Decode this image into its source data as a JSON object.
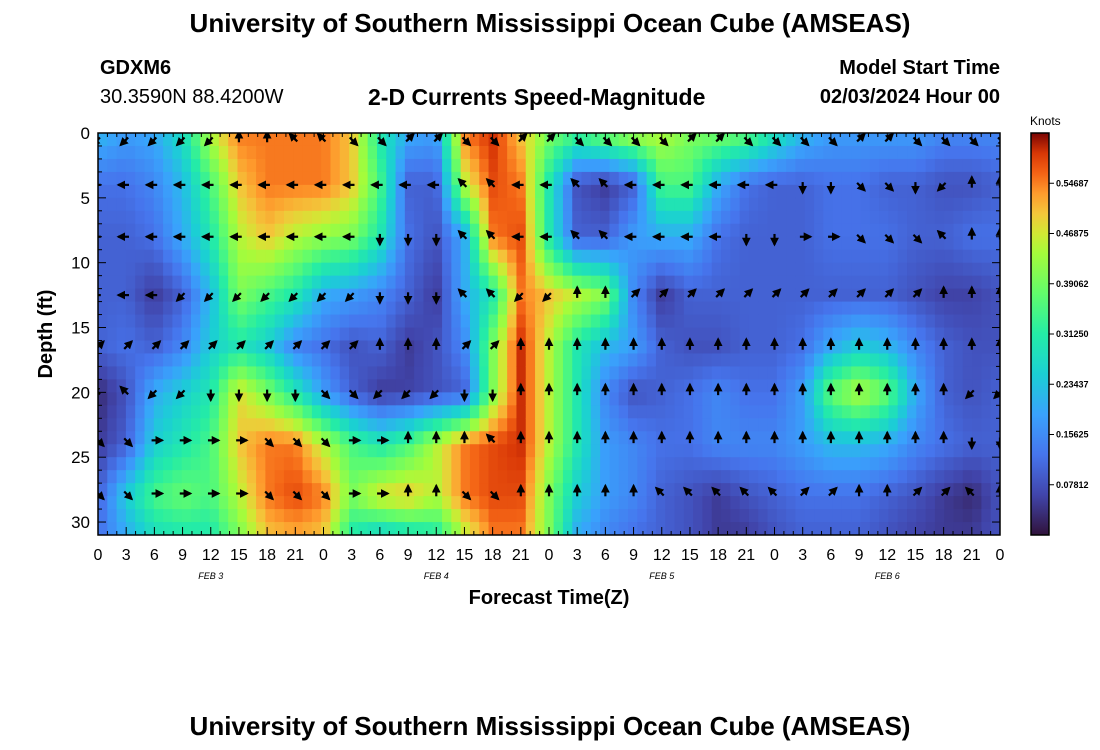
{
  "title": "University of Southern Mississippi Ocean Cube (AMSEAS)",
  "footer_title": "University of Southern Mississippi Ocean Cube (AMSEAS)",
  "header": {
    "station": "GDXM6",
    "coords": "30.3590N  88.4200W",
    "subtitle": "2-D Currents Speed-Magnitude",
    "model_label": "Model Start Time",
    "model_time": "02/03/2024 Hour 00"
  },
  "chart_data": {
    "type": "heatmap",
    "ylabel": "Depth (ft)",
    "xlabel": "Forecast Time(Z)",
    "y_ticks": [
      0,
      5,
      10,
      15,
      20,
      25,
      30
    ],
    "x_ticks": [
      "0",
      "3",
      "6",
      "9",
      "12",
      "15",
      "18",
      "21",
      "0",
      "3",
      "6",
      "9",
      "12",
      "15",
      "18",
      "21",
      "0",
      "3",
      "6",
      "9",
      "12",
      "15",
      "18",
      "21",
      "0",
      "3",
      "6",
      "9",
      "12",
      "15",
      "18",
      "21",
      "0"
    ],
    "date_labels": [
      {
        "label": "FEB 3",
        "hour": 12
      },
      {
        "label": "FEB 4",
        "hour": 36
      },
      {
        "label": "FEB 5",
        "hour": 60
      },
      {
        "label": "FEB 6",
        "hour": 84
      }
    ],
    "ylim": [
      0,
      31
    ],
    "xlim_hours": [
      0,
      96
    ],
    "colorbar": {
      "unit": "Knots",
      "ticks": [
        "0.54687",
        "0.46875",
        "0.39062",
        "0.31250",
        "0.23437",
        "0.15625",
        "0.07812"
      ],
      "tick_values": [
        0.54687,
        0.46875,
        0.390625,
        0.3125,
        0.234375,
        0.15625,
        0.078125
      ],
      "range": [
        0,
        0.625
      ]
    },
    "depths": [
      0,
      4,
      8,
      12.5,
      16.5,
      20,
      24,
      28,
      31
    ],
    "speed_rows": [
      [
        0.22,
        0.18,
        0.2,
        0.28,
        0.45,
        0.55,
        0.55,
        0.55,
        0.55,
        0.5,
        0.3,
        0.2,
        0.18,
        0.55,
        0.6,
        0.5,
        0.4,
        0.35,
        0.4,
        0.45,
        0.45,
        0.4,
        0.4,
        0.38,
        0.3,
        0.22,
        0.18,
        0.18,
        0.18,
        0.18,
        0.15,
        0.15,
        0.15
      ],
      [
        0.12,
        0.12,
        0.15,
        0.22,
        0.35,
        0.5,
        0.55,
        0.55,
        0.55,
        0.5,
        0.35,
        0.1,
        0.1,
        0.45,
        0.58,
        0.55,
        0.3,
        0.08,
        0.05,
        0.1,
        0.35,
        0.35,
        0.2,
        0.12,
        0.1,
        0.1,
        0.12,
        0.12,
        0.1,
        0.1,
        0.08,
        0.08,
        0.1
      ],
      [
        0.1,
        0.1,
        0.12,
        0.2,
        0.3,
        0.45,
        0.5,
        0.45,
        0.42,
        0.4,
        0.3,
        0.12,
        0.08,
        0.2,
        0.55,
        0.58,
        0.3,
        0.1,
        0.1,
        0.18,
        0.2,
        0.2,
        0.12,
        0.1,
        0.1,
        0.1,
        0.12,
        0.12,
        0.12,
        0.1,
        0.1,
        0.12,
        0.12
      ],
      [
        0.1,
        0.1,
        0.05,
        0.1,
        0.22,
        0.4,
        0.35,
        0.3,
        0.2,
        0.18,
        0.15,
        0.1,
        0.05,
        0.2,
        0.3,
        0.55,
        0.5,
        0.45,
        0.4,
        0.15,
        0.05,
        0.1,
        0.1,
        0.1,
        0.1,
        0.1,
        0.1,
        0.1,
        0.1,
        0.08,
        0.06,
        0.06,
        0.08
      ],
      [
        0.1,
        0.12,
        0.1,
        0.15,
        0.25,
        0.3,
        0.25,
        0.15,
        0.12,
        0.08,
        0.1,
        0.05,
        0.08,
        0.15,
        0.4,
        0.6,
        0.45,
        0.3,
        0.22,
        0.18,
        0.1,
        0.08,
        0.08,
        0.1,
        0.1,
        0.12,
        0.2,
        0.25,
        0.22,
        0.15,
        0.1,
        0.08,
        0.08
      ],
      [
        0.03,
        0.08,
        0.2,
        0.25,
        0.3,
        0.48,
        0.4,
        0.3,
        0.18,
        0.1,
        0.05,
        0.06,
        0.08,
        0.1,
        0.4,
        0.6,
        0.45,
        0.3,
        0.15,
        0.08,
        0.1,
        0.12,
        0.15,
        0.12,
        0.12,
        0.18,
        0.38,
        0.45,
        0.38,
        0.2,
        0.1,
        0.08,
        0.1
      ],
      [
        0.05,
        0.1,
        0.25,
        0.3,
        0.35,
        0.5,
        0.55,
        0.55,
        0.45,
        0.35,
        0.3,
        0.35,
        0.45,
        0.55,
        0.58,
        0.6,
        0.45,
        0.3,
        0.18,
        0.15,
        0.12,
        0.12,
        0.15,
        0.15,
        0.15,
        0.18,
        0.22,
        0.22,
        0.2,
        0.15,
        0.12,
        0.1,
        0.1
      ],
      [
        0.1,
        0.25,
        0.35,
        0.38,
        0.35,
        0.45,
        0.55,
        0.58,
        0.55,
        0.4,
        0.48,
        0.5,
        0.45,
        0.55,
        0.58,
        0.58,
        0.4,
        0.25,
        0.18,
        0.15,
        0.1,
        0.08,
        0.05,
        0.08,
        0.1,
        0.12,
        0.12,
        0.12,
        0.1,
        0.08,
        0.05,
        0.03,
        0.08
      ],
      [
        0.12,
        0.2,
        0.28,
        0.3,
        0.3,
        0.4,
        0.5,
        0.52,
        0.5,
        0.3,
        0.25,
        0.28,
        0.3,
        0.45,
        0.55,
        0.55,
        0.4,
        0.2,
        0.15,
        0.12,
        0.1,
        0.08,
        0.05,
        0.05,
        0.08,
        0.1,
        0.1,
        0.1,
        0.08,
        0.06,
        0.05,
        0.05,
        0.08
      ]
    ],
    "arrow_depths": [
      0.5,
      4,
      8,
      12.5,
      16.5,
      20,
      23.7,
      27.8
    ],
    "arrow_rows": [
      [
        225,
        225,
        225,
        225,
        225,
        0,
        0,
        315,
        315,
        135,
        135,
        45,
        45,
        135,
        135,
        45,
        45,
        135,
        135,
        135,
        135,
        45,
        45,
        135,
        135,
        135,
        135,
        45,
        45,
        135,
        135,
        135,
        135
      ],
      [
        270,
        270,
        270,
        270,
        270,
        270,
        270,
        270,
        270,
        270,
        270,
        270,
        270,
        315,
        315,
        270,
        270,
        315,
        315,
        270,
        270,
        270,
        270,
        270,
        270,
        180,
        180,
        135,
        135,
        180,
        225,
        0,
        0
      ],
      [
        270,
        270,
        270,
        270,
        270,
        270,
        270,
        270,
        270,
        270,
        180,
        180,
        180,
        315,
        315,
        270,
        270,
        315,
        315,
        270,
        270,
        270,
        270,
        180,
        180,
        90,
        90,
        135,
        135,
        135,
        315,
        0,
        0
      ],
      [
        270,
        270,
        270,
        225,
        225,
        225,
        225,
        225,
        225,
        225,
        180,
        180,
        180,
        315,
        315,
        225,
        225,
        0,
        0,
        45,
        45,
        45,
        45,
        45,
        45,
        45,
        45,
        45,
        45,
        45,
        0,
        0,
        0
      ],
      [
        45,
        45,
        45,
        45,
        45,
        45,
        45,
        45,
        45,
        45,
        0,
        0,
        0,
        45,
        45,
        0,
        0,
        0,
        0,
        0,
        0,
        0,
        0,
        0,
        0,
        0,
        0,
        0,
        0,
        0,
        0,
        0,
        0
      ],
      [
        315,
        315,
        225,
        225,
        180,
        180,
        180,
        180,
        135,
        135,
        225,
        225,
        225,
        180,
        180,
        0,
        0,
        0,
        0,
        0,
        0,
        0,
        0,
        0,
        0,
        0,
        0,
        0,
        0,
        0,
        0,
        225,
        225
      ],
      [
        135,
        135,
        90,
        90,
        90,
        90,
        135,
        135,
        135,
        90,
        90,
        0,
        0,
        0,
        315,
        0,
        0,
        0,
        0,
        0,
        0,
        0,
        0,
        0,
        0,
        0,
        0,
        0,
        0,
        0,
        0,
        180,
        180
      ],
      [
        135,
        135,
        90,
        90,
        90,
        90,
        135,
        135,
        135,
        90,
        90,
        0,
        0,
        135,
        135,
        0,
        0,
        0,
        0,
        0,
        315,
        315,
        315,
        315,
        315,
        45,
        45,
        0,
        0,
        45,
        45,
        315,
        0
      ]
    ]
  }
}
